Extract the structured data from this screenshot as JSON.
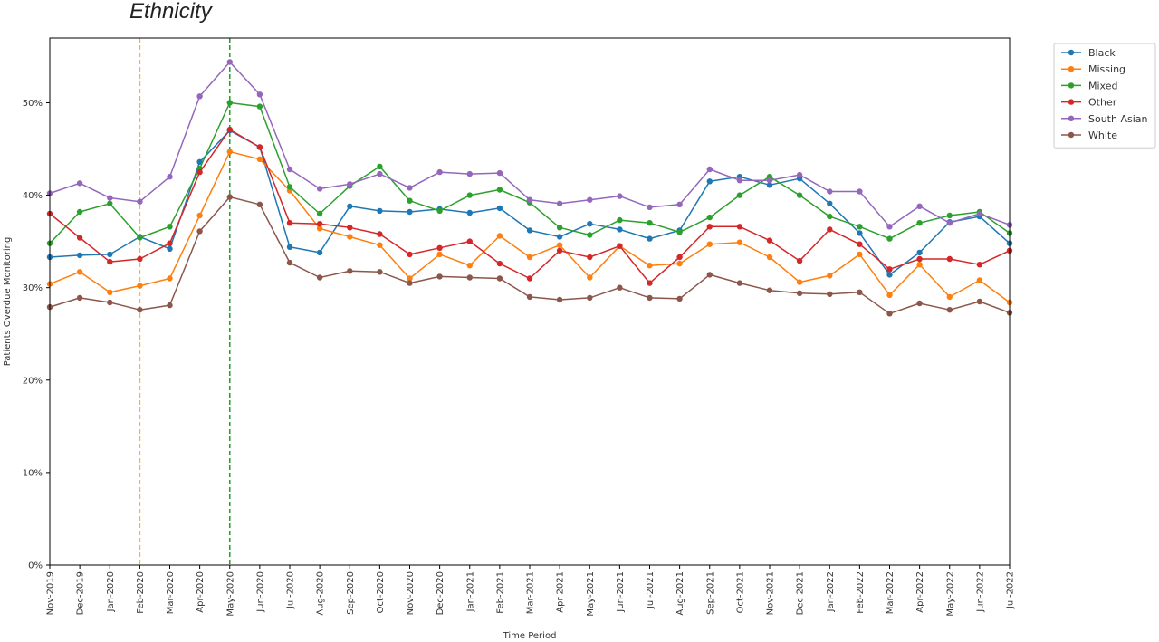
{
  "page_title": "Ethnicity",
  "chart_data": {
    "type": "line",
    "title": "",
    "xlabel": "Time Period",
    "ylabel": "Patients Overdue Monitoring",
    "ylim": [
      0,
      57
    ],
    "yticks": [
      0,
      10,
      20,
      30,
      40,
      50
    ],
    "ytick_labels": [
      "0%",
      "10%",
      "20%",
      "30%",
      "40%",
      "50%"
    ],
    "grid": false,
    "legend_position": "outside-top-right",
    "categories": [
      "Nov-2019",
      "Dec-2019",
      "Jan-2020",
      "Feb-2020",
      "Mar-2020",
      "Apr-2020",
      "May-2020",
      "Jun-2020",
      "Jul-2020",
      "Aug-2020",
      "Sep-2020",
      "Oct-2020",
      "Nov-2020",
      "Dec-2020",
      "Jan-2021",
      "Feb-2021",
      "Mar-2021",
      "Apr-2021",
      "May-2021",
      "Jun-2021",
      "Jul-2021",
      "Aug-2021",
      "Sep-2021",
      "Oct-2021",
      "Nov-2021",
      "Dec-2021",
      "Jan-2022",
      "Feb-2022",
      "Mar-2022",
      "Apr-2022",
      "May-2022",
      "Jun-2022",
      "Jul-2022"
    ],
    "series": [
      {
        "name": "Black",
        "color": "#1f77b4",
        "values": [
          33.3,
          33.5,
          33.6,
          35.5,
          34.2,
          43.6,
          47.0,
          45.2,
          34.4,
          33.8,
          38.8,
          38.3,
          38.2,
          38.5,
          38.1,
          38.6,
          36.2,
          35.5,
          36.9,
          36.3,
          35.3,
          36.2,
          41.5,
          42.0,
          41.1,
          41.8,
          39.1,
          35.9,
          31.4,
          33.8,
          37.1,
          37.7,
          34.8
        ]
      },
      {
        "name": "Missing",
        "color": "#ff7f0e",
        "values": [
          30.4,
          31.7,
          29.5,
          30.2,
          31.0,
          37.8,
          44.7,
          43.9,
          40.5,
          36.4,
          35.5,
          34.6,
          31.0,
          33.6,
          32.4,
          35.6,
          33.3,
          34.6,
          31.1,
          34.5,
          32.4,
          32.6,
          34.7,
          34.9,
          33.3,
          30.6,
          31.3,
          33.6,
          29.2,
          32.5,
          29.0,
          30.8,
          28.4
        ]
      },
      {
        "name": "Mixed",
        "color": "#2ca02c",
        "values": [
          34.8,
          38.2,
          39.1,
          35.4,
          36.6,
          42.9,
          50.0,
          49.6,
          40.9,
          38.0,
          41.0,
          43.1,
          39.4,
          38.3,
          40.0,
          40.6,
          39.2,
          36.5,
          35.7,
          37.3,
          37.0,
          36.0,
          37.6,
          40.0,
          42.0,
          40.0,
          37.7,
          36.6,
          35.3,
          37.0,
          37.8,
          38.2,
          35.9
        ]
      },
      {
        "name": "Other",
        "color": "#d62728",
        "values": [
          38.0,
          35.4,
          32.8,
          33.1,
          34.8,
          42.5,
          47.1,
          45.2,
          37.0,
          36.9,
          36.5,
          35.8,
          33.6,
          34.3,
          35.0,
          32.6,
          31.0,
          34.0,
          33.3,
          34.5,
          30.5,
          33.3,
          36.6,
          36.6,
          35.1,
          32.9,
          36.3,
          34.7,
          32.0,
          33.1,
          33.1,
          32.5,
          34.0
        ]
      },
      {
        "name": "South Asian",
        "color": "#9467bd",
        "values": [
          40.2,
          41.3,
          39.7,
          39.3,
          42.0,
          50.7,
          54.4,
          50.9,
          42.8,
          40.7,
          41.2,
          42.3,
          40.8,
          42.5,
          42.3,
          42.4,
          39.5,
          39.1,
          39.5,
          39.9,
          38.7,
          39.0,
          42.8,
          41.6,
          41.6,
          42.2,
          40.4,
          40.4,
          36.6,
          38.8,
          37.0,
          38.0,
          36.8
        ]
      },
      {
        "name": "White",
        "color": "#8c564b",
        "values": [
          27.9,
          28.9,
          28.4,
          27.6,
          28.1,
          36.1,
          39.8,
          39.0,
          32.7,
          31.1,
          31.8,
          31.7,
          30.5,
          31.2,
          31.1,
          31.0,
          29.0,
          28.7,
          28.9,
          30.0,
          28.9,
          28.8,
          31.4,
          30.5,
          29.7,
          29.4,
          29.3,
          29.5,
          27.2,
          28.3,
          27.6,
          28.5,
          27.3
        ]
      }
    ],
    "reference_lines": [
      {
        "x": "Feb-2020",
        "color": "#ffb233",
        "style": "dashed"
      },
      {
        "x": "May-2020",
        "color": "#2ca02c",
        "style": "dashed"
      }
    ]
  }
}
